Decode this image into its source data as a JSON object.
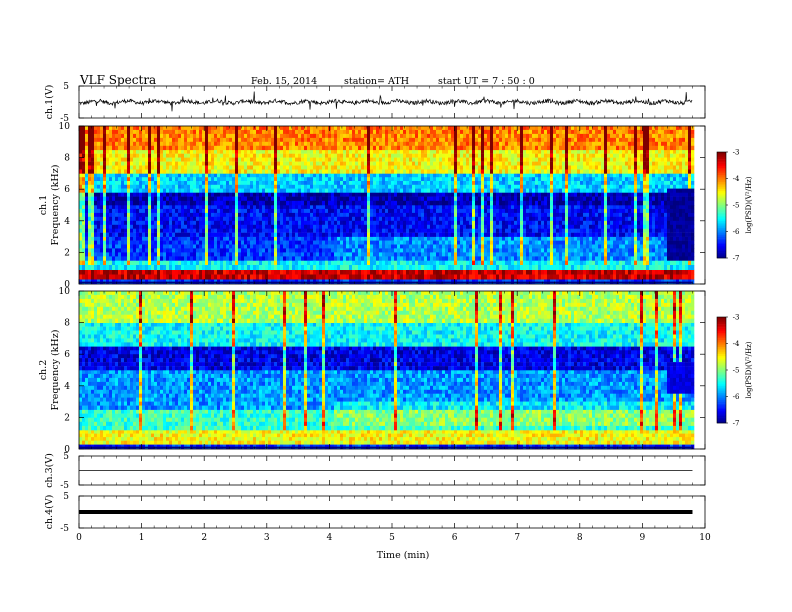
{
  "header": {
    "title": "VLF  Spectra",
    "date": "Feb. 15, 2014",
    "station": "station= ATH",
    "start": "start  UT  =   7 : 50 : 0"
  },
  "chart_data": [
    {
      "type": "line",
      "panel": "ch1-waveform",
      "ylabel": "ch.1(V)",
      "xlim": [
        0,
        10
      ],
      "ylim": [
        -5,
        5
      ],
      "yticks": [
        "5",
        "-5"
      ],
      "baseline": 0,
      "noise": "dense waveform near 0 V with spikes to roughly ±3 V",
      "x_end_data": 9.8
    },
    {
      "type": "heatmap",
      "panel": "ch1-spectrogram",
      "ylabel": "Frequency (kHz)",
      "ylabel_prefix": "ch.1",
      "xlim": [
        0,
        10
      ],
      "ylim": [
        0,
        10
      ],
      "yticks": [
        "0",
        "2",
        "4",
        "6",
        "8",
        "10"
      ],
      "colorbar": {
        "label": "log(PSD)(V²/Hz)",
        "range": [
          -7,
          -3
        ],
        "ticks": [
          "-3",
          "-4",
          "-5",
          "-6",
          "-7"
        ]
      },
      "bands": [
        {
          "f": [
            0,
            0.3
          ],
          "level": -6.3
        },
        {
          "f": [
            0.3,
            0.9
          ],
          "level": -3.3
        },
        {
          "f": [
            0.9,
            1.5
          ],
          "level": -5.5
        },
        {
          "f": [
            1.5,
            3.0
          ],
          "level": -6.3
        },
        {
          "f": [
            3.0,
            5.0
          ],
          "level": -6.5
        },
        {
          "f": [
            5.0,
            5.8
          ],
          "level": -6.8
        },
        {
          "f": [
            5.8,
            7.0
          ],
          "level": -5.7
        },
        {
          "f": [
            7.0,
            8.5
          ],
          "level": -4.5
        },
        {
          "f": [
            8.5,
            10
          ],
          "level": -4.0
        }
      ],
      "segment_change_min": 4.05,
      "dark_patch": {
        "t": [
          9.35,
          9.8
        ],
        "f": [
          1.5,
          6.0
        ],
        "level": -6.9
      }
    },
    {
      "type": "heatmap",
      "panel": "ch2-spectrogram",
      "ylabel": "Frequency (kHz)",
      "ylabel_prefix": "ch.2",
      "xlim": [
        0,
        10
      ],
      "ylim": [
        0,
        10
      ],
      "yticks": [
        "0",
        "2",
        "4",
        "6",
        "8",
        "10"
      ],
      "colorbar": {
        "label": "log(PSD)(V²/Hz)",
        "range": [
          -7,
          -3
        ],
        "ticks": [
          "-3",
          "-4",
          "-5",
          "-6",
          "-7"
        ]
      },
      "bands": [
        {
          "f": [
            0,
            0.3
          ],
          "level": -6.3
        },
        {
          "f": [
            0.3,
            1.2
          ],
          "level": -4.5
        },
        {
          "f": [
            1.2,
            2.5
          ],
          "level": -5.3
        },
        {
          "f": [
            2.5,
            5.0
          ],
          "level": -5.9
        },
        {
          "f": [
            5.0,
            6.5
          ],
          "level": -6.6
        },
        {
          "f": [
            6.5,
            8.0
          ],
          "level": -5.5
        },
        {
          "f": [
            8.0,
            10
          ],
          "level": -4.8
        }
      ],
      "segment_change_min": 4.05,
      "dark_patch": {
        "t": [
          9.35,
          9.8
        ],
        "f": [
          3.5,
          5.5
        ],
        "level": -6.6
      }
    },
    {
      "type": "line",
      "panel": "ch3-waveform",
      "ylabel": "ch.3(V)",
      "xlim": [
        0,
        10
      ],
      "ylim": [
        -5,
        5
      ],
      "yticks": [
        "5",
        "-5"
      ],
      "baseline": 0
    },
    {
      "type": "line",
      "panel": "ch4-waveform",
      "ylabel": "ch.4(V)",
      "xlim": [
        0,
        10
      ],
      "ylim": [
        -5,
        5
      ],
      "yticks": [
        "5",
        "-5"
      ],
      "baseline": 0,
      "thick": true
    }
  ],
  "xaxis": {
    "label": "Time  (min)",
    "ticks": [
      "0",
      "1",
      "2",
      "3",
      "4",
      "5",
      "6",
      "7",
      "8",
      "9",
      "10"
    ]
  }
}
